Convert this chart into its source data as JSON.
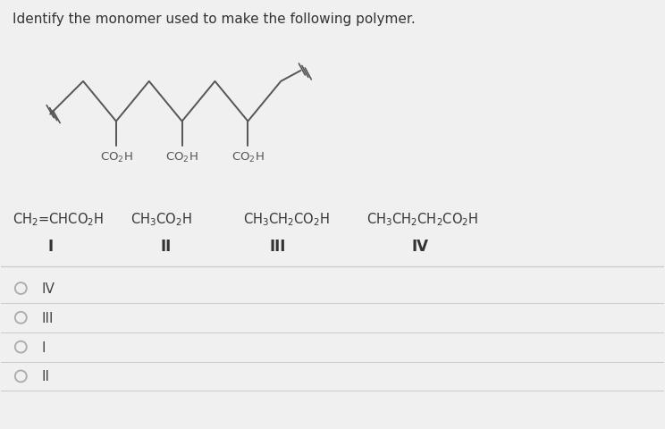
{
  "title": "Identify the monomer used to make the following polymer.",
  "title_fontsize": 11,
  "title_color": "#333333",
  "background_color": "#f0f0f0",
  "chain_color": "#555555",
  "text_color": "#444444",
  "radio_color": "#aaaaaa",
  "line_color": "#cccccc",
  "answer_options": [
    "IV",
    "III",
    "I",
    "II"
  ],
  "label_fontsize": 11,
  "formula_fontsize": 10.5,
  "answer_fontsize": 11,
  "compounds": [
    {
      "formula": "CH$_2$=CHCO$_2$H",
      "label": "I"
    },
    {
      "formula": "CH$_3$CO$_2$H",
      "label": "II"
    },
    {
      "formula": "CH$_3$CH$_2$CO$_2$H",
      "label": "III"
    },
    {
      "formula": "CH$_3$CH$_2$CH$_2$CO$_2$H",
      "label": "IV"
    }
  ]
}
